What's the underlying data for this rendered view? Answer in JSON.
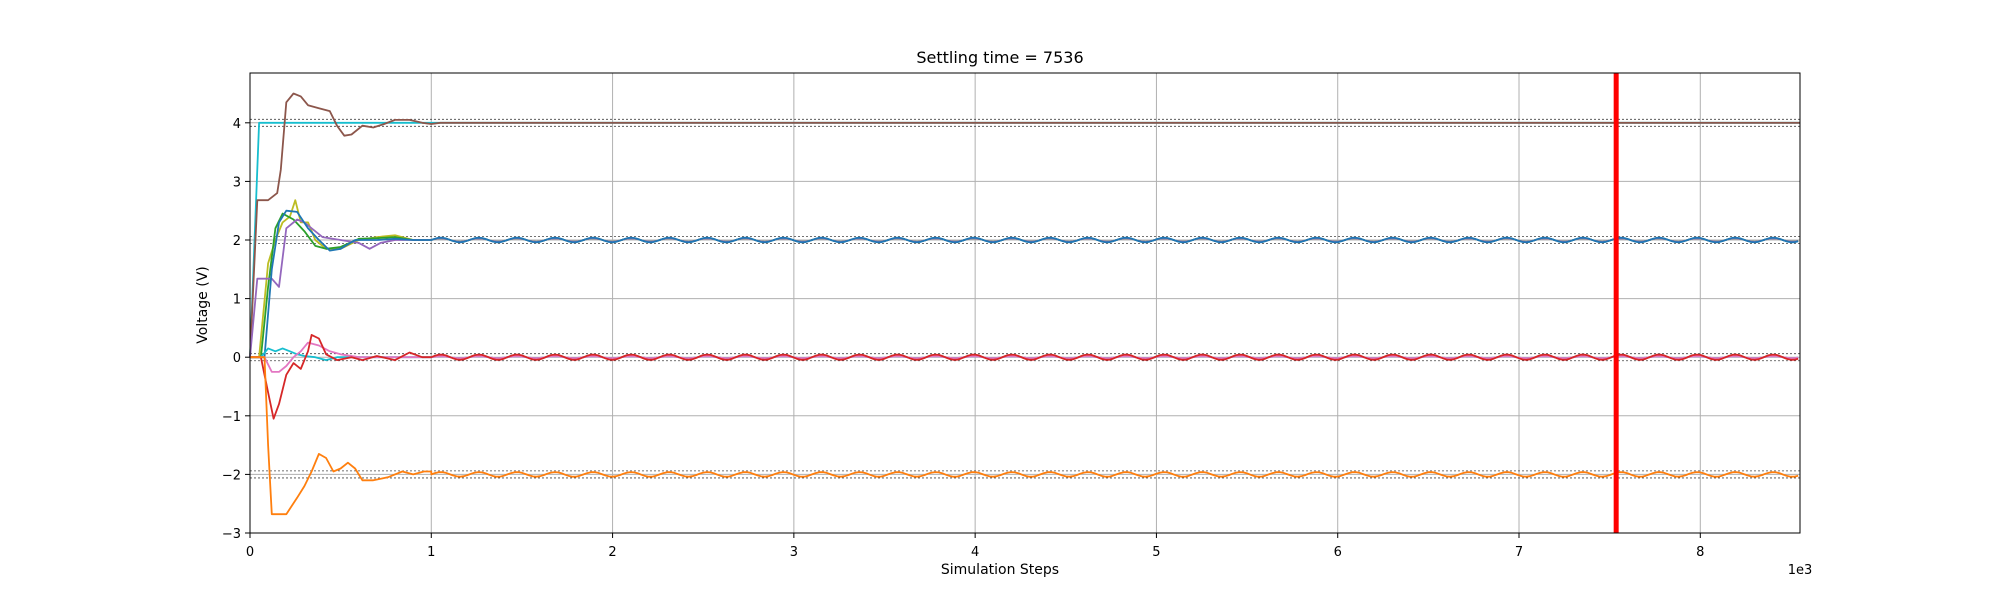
{
  "chart_data": {
    "type": "line",
    "title": "Settling time = 7536",
    "xlabel": "Simulation Steps",
    "ylabel": "Voltage (V)",
    "x_scale_label": "1e3",
    "xlim": [
      0,
      8.55
    ],
    "ylim": [
      -3,
      4.85
    ],
    "x_ticks": [
      0,
      1,
      2,
      3,
      4,
      5,
      6,
      7,
      8
    ],
    "x_tick_labels": [
      "0",
      "1",
      "2",
      "3",
      "4",
      "5",
      "6",
      "7",
      "8"
    ],
    "y_ticks": [
      -3,
      -2,
      -1,
      0,
      1,
      2,
      3,
      4
    ],
    "y_tick_labels": [
      "−3",
      "−2",
      "−1",
      "0",
      "1",
      "2",
      "3",
      "4"
    ],
    "grid": true,
    "settling_marker": {
      "x": 7.536,
      "color": "#ff0000"
    },
    "tolerance_bands": [
      {
        "center": 4,
        "lower": 3.94,
        "upper": 4.06
      },
      {
        "center": 2,
        "lower": 1.94,
        "upper": 2.06
      },
      {
        "center": 0,
        "lower": -0.06,
        "upper": 0.06
      },
      {
        "center": -2,
        "lower": -2.06,
        "upper": -1.94
      }
    ],
    "series": [
      {
        "color": "#17becf",
        "target": 4,
        "points": [
          [
            0,
            0
          ],
          [
            0.05,
            4
          ],
          [
            8.55,
            4
          ]
        ],
        "osc_from": null,
        "osc_amp": 0
      },
      {
        "color": "#8c564b",
        "target": 4,
        "points": [
          [
            0,
            0
          ],
          [
            0.04,
            2.68
          ],
          [
            0.1,
            2.68
          ],
          [
            0.15,
            2.8
          ],
          [
            0.17,
            3.2
          ],
          [
            0.2,
            4.35
          ],
          [
            0.24,
            4.5
          ],
          [
            0.28,
            4.45
          ],
          [
            0.32,
            4.3
          ],
          [
            0.38,
            4.25
          ],
          [
            0.44,
            4.2
          ],
          [
            0.48,
            3.95
          ],
          [
            0.52,
            3.78
          ],
          [
            0.56,
            3.8
          ],
          [
            0.62,
            3.95
          ],
          [
            0.68,
            3.92
          ],
          [
            0.74,
            3.98
          ],
          [
            0.8,
            4.05
          ],
          [
            0.88,
            4.05
          ],
          [
            0.95,
            4.0
          ],
          [
            1.0,
            3.98
          ],
          [
            1.05,
            4.0
          ],
          [
            8.55,
            4.0
          ]
        ],
        "osc_from": null,
        "osc_amp": 0
      },
      {
        "color": "#bcbd22",
        "target": 2,
        "points": [
          [
            0,
            0
          ],
          [
            0.05,
            0
          ],
          [
            0.1,
            1.6
          ],
          [
            0.14,
            2.0
          ],
          [
            0.18,
            2.3
          ],
          [
            0.22,
            2.4
          ],
          [
            0.25,
            2.68
          ],
          [
            0.28,
            2.3
          ],
          [
            0.32,
            2.3
          ],
          [
            0.36,
            2.0
          ],
          [
            0.42,
            1.85
          ],
          [
            0.5,
            1.85
          ],
          [
            0.6,
            2.0
          ],
          [
            0.7,
            2.05
          ],
          [
            0.8,
            2.08
          ],
          [
            0.9,
            2.0
          ],
          [
            1.0,
            2.0
          ]
        ],
        "osc_from": 1.0,
        "osc_amp": 0.03
      },
      {
        "color": "#2ca02c",
        "target": 2,
        "points": [
          [
            0,
            0
          ],
          [
            0.06,
            0
          ],
          [
            0.1,
            1.2
          ],
          [
            0.14,
            2.2
          ],
          [
            0.18,
            2.45
          ],
          [
            0.24,
            2.35
          ],
          [
            0.3,
            2.15
          ],
          [
            0.36,
            1.9
          ],
          [
            0.42,
            1.85
          ],
          [
            0.5,
            1.88
          ],
          [
            0.6,
            2.02
          ],
          [
            0.7,
            2.03
          ],
          [
            0.8,
            2.05
          ],
          [
            0.9,
            2.0
          ],
          [
            1.0,
            2.0
          ]
        ],
        "osc_from": 1.0,
        "osc_amp": 0.03
      },
      {
        "color": "#9467bd",
        "target": 2,
        "points": [
          [
            0,
            0
          ],
          [
            0.04,
            1.34
          ],
          [
            0.12,
            1.34
          ],
          [
            0.16,
            1.2
          ],
          [
            0.2,
            2.2
          ],
          [
            0.26,
            2.35
          ],
          [
            0.3,
            2.3
          ],
          [
            0.34,
            2.2
          ],
          [
            0.4,
            2.05
          ],
          [
            0.5,
            2.0
          ],
          [
            0.6,
            1.95
          ],
          [
            0.66,
            1.85
          ],
          [
            0.72,
            1.95
          ],
          [
            0.8,
            2.0
          ],
          [
            0.9,
            2.0
          ],
          [
            1.0,
            2.0
          ]
        ],
        "osc_from": 1.0,
        "osc_amp": 0.03
      },
      {
        "color": "#1f77b4",
        "target": 2,
        "points": [
          [
            0,
            0
          ],
          [
            0.08,
            0
          ],
          [
            0.12,
            1.5
          ],
          [
            0.16,
            2.3
          ],
          [
            0.2,
            2.5
          ],
          [
            0.26,
            2.48
          ],
          [
            0.32,
            2.2
          ],
          [
            0.38,
            2.0
          ],
          [
            0.44,
            1.82
          ],
          [
            0.5,
            1.85
          ],
          [
            0.58,
            2.0
          ],
          [
            0.7,
            2.0
          ],
          [
            0.8,
            2.02
          ],
          [
            0.9,
            2.0
          ],
          [
            1.0,
            2.0
          ]
        ],
        "osc_from": 1.0,
        "osc_amp": 0.04
      },
      {
        "color": "#17becf",
        "target": 0,
        "points": [
          [
            0,
            0
          ],
          [
            0.06,
            0
          ],
          [
            0.1,
            0.15
          ],
          [
            0.14,
            0.1
          ],
          [
            0.18,
            0.15
          ],
          [
            0.22,
            0.1
          ],
          [
            0.26,
            0.05
          ],
          [
            0.3,
            0.02
          ],
          [
            0.36,
            0.0
          ],
          [
            0.42,
            -0.05
          ],
          [
            0.48,
            0.0
          ],
          [
            0.6,
            0.0
          ],
          [
            1.0,
            0.0
          ]
        ],
        "osc_from": 1.0,
        "osc_amp": 0.015
      },
      {
        "color": "#e377c2",
        "target": 0,
        "points": [
          [
            0,
            0
          ],
          [
            0.08,
            0
          ],
          [
            0.12,
            -0.25
          ],
          [
            0.16,
            -0.25
          ],
          [
            0.2,
            -0.15
          ],
          [
            0.24,
            0.0
          ],
          [
            0.28,
            0.1
          ],
          [
            0.32,
            0.25
          ],
          [
            0.38,
            0.2
          ],
          [
            0.44,
            0.1
          ],
          [
            0.5,
            0.05
          ],
          [
            0.6,
            0.0
          ],
          [
            1.0,
            0.0
          ]
        ],
        "osc_from": 1.0,
        "osc_amp": 0.015
      },
      {
        "color": "#d62728",
        "target": 0,
        "points": [
          [
            0,
            0
          ],
          [
            0.06,
            0
          ],
          [
            0.1,
            -0.6
          ],
          [
            0.13,
            -1.05
          ],
          [
            0.16,
            -0.8
          ],
          [
            0.2,
            -0.3
          ],
          [
            0.24,
            -0.1
          ],
          [
            0.28,
            -0.2
          ],
          [
            0.32,
            0.1
          ],
          [
            0.34,
            0.38
          ],
          [
            0.38,
            0.32
          ],
          [
            0.42,
            0.05
          ],
          [
            0.48,
            -0.05
          ],
          [
            0.56,
            0.0
          ],
          [
            0.62,
            -0.05
          ],
          [
            0.7,
            0.02
          ],
          [
            0.8,
            -0.05
          ],
          [
            0.88,
            0.08
          ],
          [
            0.95,
            0.0
          ],
          [
            1.0,
            0.0
          ]
        ],
        "osc_from": 1.0,
        "osc_amp": 0.045
      },
      {
        "color": "#ff7f0e",
        "target": -2,
        "points": [
          [
            0,
            0
          ],
          [
            0.08,
            0
          ],
          [
            0.1,
            -1.5
          ],
          [
            0.12,
            -2.68
          ],
          [
            0.2,
            -2.68
          ],
          [
            0.26,
            -2.4
          ],
          [
            0.3,
            -2.2
          ],
          [
            0.34,
            -1.95
          ],
          [
            0.38,
            -1.65
          ],
          [
            0.42,
            -1.72
          ],
          [
            0.46,
            -1.95
          ],
          [
            0.5,
            -1.9
          ],
          [
            0.54,
            -1.8
          ],
          [
            0.58,
            -1.9
          ],
          [
            0.62,
            -2.1
          ],
          [
            0.68,
            -2.1
          ],
          [
            0.76,
            -2.05
          ],
          [
            0.84,
            -1.95
          ],
          [
            0.9,
            -2.0
          ],
          [
            0.96,
            -1.95
          ],
          [
            1.0,
            -1.95
          ]
        ],
        "osc_from": 1.0,
        "osc_amp": 0.04
      }
    ]
  }
}
